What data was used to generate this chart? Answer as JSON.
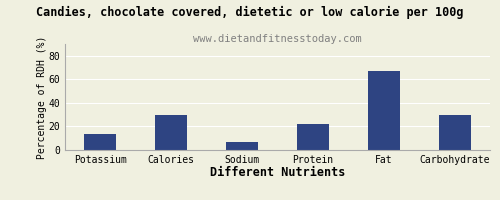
{
  "title": "Candies, chocolate covered, dietetic or low calorie per 100g",
  "subtitle": "www.dietandfitnesstoday.com",
  "xlabel": "Different Nutrients",
  "ylabel": "Percentage of RDH (%)",
  "categories": [
    "Potassium",
    "Calories",
    "Sodium",
    "Protein",
    "Fat",
    "Carbohydrate"
  ],
  "values": [
    14,
    30,
    7,
    22,
    67,
    30
  ],
  "bar_color": "#2e4482",
  "ylim": [
    0,
    90
  ],
  "yticks": [
    0,
    20,
    40,
    60,
    80
  ],
  "background_color": "#f0f0e0",
  "plot_bg_color": "#f0f0e0",
  "title_fontsize": 8.5,
  "subtitle_fontsize": 7.5,
  "xlabel_fontsize": 8.5,
  "ylabel_fontsize": 7,
  "tick_fontsize": 7,
  "bar_width": 0.45
}
